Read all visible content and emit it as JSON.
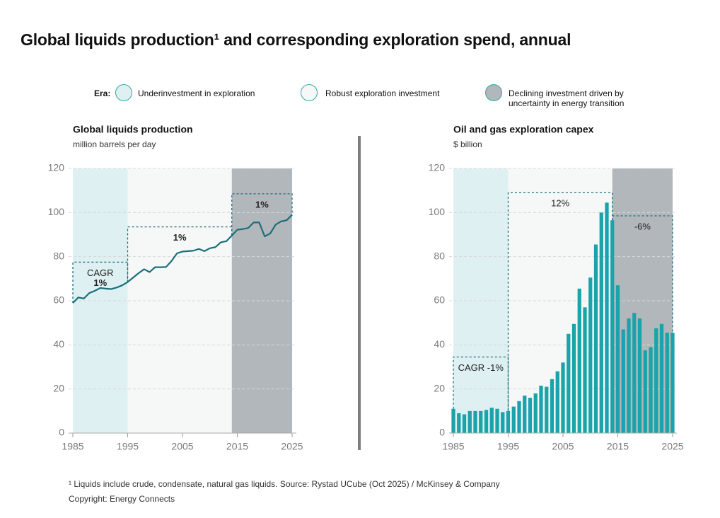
{
  "header": {
    "title": "Global liquids production¹ and corresponding exploration spend, annual"
  },
  "legend": {
    "label": "Era:",
    "items": [
      {
        "name": "Underinvestment in exploration",
        "color": "#dff0f2"
      },
      {
        "name": "Robust exploration investment",
        "color": "#f6f8f8"
      },
      {
        "name": "Declining investment driven by uncertainty in energy transition",
        "color": "#b2b7bb"
      }
    ]
  },
  "chart_data": [
    {
      "type": "line",
      "title": "Global liquids production",
      "subtitle": "million barrels per day",
      "x": [
        1985,
        1986,
        1987,
        1988,
        1989,
        1990,
        1991,
        1992,
        1993,
        1994,
        1995,
        1996,
        1997,
        1998,
        1999,
        2000,
        2001,
        2002,
        2003,
        2004,
        2005,
        2006,
        2007,
        2008,
        2009,
        2010,
        2011,
        2012,
        2013,
        2014,
        2015,
        2016,
        2017,
        2018,
        2019,
        2020,
        2021,
        2022,
        2023,
        2024,
        2025
      ],
      "values": [
        59,
        61.5,
        61,
        63.5,
        64.5,
        65.8,
        65.5,
        65.3,
        66,
        67,
        68.5,
        70.5,
        72.5,
        74.3,
        73,
        75.2,
        75.2,
        75.3,
        78,
        81.5,
        82.3,
        82.5,
        82.7,
        83.5,
        82.5,
        83.8,
        84.3,
        86.5,
        87,
        89.5,
        92.2,
        92.5,
        93,
        95.5,
        95.5,
        89.2,
        90.5,
        94.5,
        96,
        96.5,
        99
      ],
      "color": "#1a6f78",
      "xlim": [
        1985,
        2025
      ],
      "ylim": [
        0,
        120
      ],
      "xticks": [
        1985,
        1995,
        2005,
        2015,
        2025
      ],
      "yticks": [
        0,
        20,
        40,
        60,
        80,
        100,
        120
      ],
      "grid": true,
      "eras": [
        {
          "start": 1985,
          "end": 1995,
          "color": "#dff0f2"
        },
        {
          "start": 1995,
          "end": 2014,
          "color": "#f6f8f8"
        },
        {
          "start": 2014,
          "end": 2025,
          "color": "#b2b7bb"
        }
      ],
      "label_weight": "bold",
      "periods": [
        {
          "start": 1985,
          "end": 1995,
          "level": 77.5,
          "note": "CAGR",
          "label": "1%"
        },
        {
          "start": 1995,
          "end": 2014,
          "level": 93.5,
          "label": "1%"
        },
        {
          "start": 2014,
          "end": 2025,
          "level": 108.5,
          "label": "1%"
        }
      ]
    },
    {
      "type": "bar",
      "title": "Oil and gas exploration capex",
      "subtitle": "$ billion",
      "x": [
        1985,
        1986,
        1987,
        1988,
        1989,
        1990,
        1991,
        1992,
        1993,
        1994,
        1995,
        1996,
        1997,
        1998,
        1999,
        2000,
        2001,
        2002,
        2003,
        2004,
        2005,
        2006,
        2007,
        2008,
        2009,
        2010,
        2011,
        2012,
        2013,
        2014,
        2015,
        2016,
        2017,
        2018,
        2019,
        2020,
        2021,
        2022,
        2023,
        2024,
        2025
      ],
      "values": [
        11,
        9,
        8.5,
        10,
        10,
        10,
        10.5,
        11.5,
        11,
        9.5,
        10,
        12,
        14.5,
        17,
        16,
        18,
        21.5,
        21,
        24.5,
        28,
        32,
        45,
        49.5,
        65.5,
        57,
        70.5,
        85.5,
        100,
        104.5,
        96.5,
        67,
        47,
        52,
        54.5,
        52,
        37.5,
        39,
        47.5,
        49.5,
        45.5,
        45.5
      ],
      "color": "#1aa3ab",
      "xlim": [
        1985,
        2025
      ],
      "ylim": [
        0,
        120
      ],
      "xticks": [
        1985,
        1995,
        2005,
        2015,
        2025
      ],
      "yticks": [
        0,
        20,
        40,
        60,
        80,
        100,
        120
      ],
      "grid": true,
      "eras": [
        {
          "start": 1985,
          "end": 1995,
          "color": "#dff0f2"
        },
        {
          "start": 1995,
          "end": 2014,
          "color": "#f6f8f8"
        },
        {
          "start": 2014,
          "end": 2025,
          "color": "#b2b7bb"
        }
      ],
      "label_weight": "normal",
      "periods": [
        {
          "start": 1985,
          "end": 1995,
          "level": 34.5,
          "label": "CAGR -1%"
        },
        {
          "start": 1995,
          "end": 2014,
          "level": 109,
          "label": "12%"
        },
        {
          "start": 2014,
          "end": 2025,
          "level": 98.5,
          "label": "-6%"
        }
      ]
    }
  ],
  "footnote": {
    "source": "¹ Liquids include crude, condensate, natural gas liquids. Source: Rystad UCube (Oct 2025)  / McKinsey & Company",
    "copyright": "Copyright: Energy Connects"
  }
}
